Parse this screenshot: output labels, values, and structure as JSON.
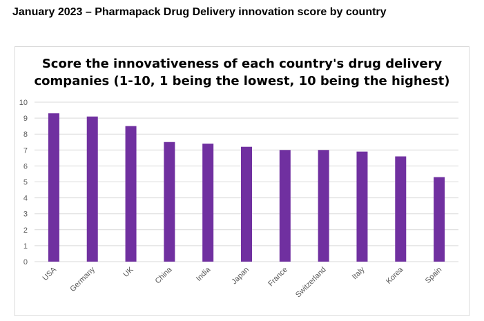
{
  "page": {
    "heading": "January 2023 – Pharmapack Drug Delivery innovation score by country"
  },
  "chart_data": {
    "type": "bar",
    "title_lines": [
      "Score the innovativeness of each country's drug delivery",
      "companies (1-10, 1 being the lowest, 10 being the highest)"
    ],
    "categories": [
      "USA",
      "Germany",
      "UK",
      "China",
      "India",
      "Japan",
      "France",
      "Switzerland",
      "Italy",
      "Korea",
      "Spain"
    ],
    "values": [
      9.3,
      9.1,
      8.5,
      7.5,
      7.4,
      7.2,
      7.0,
      7.0,
      6.9,
      6.6,
      5.3
    ],
    "ylim": [
      0,
      10
    ],
    "yticks": [
      0,
      1,
      2,
      3,
      4,
      5,
      6,
      7,
      8,
      9,
      10
    ],
    "xlabel": "",
    "ylabel": "",
    "grid": true,
    "legend": "none",
    "colors": {
      "bar": "#7030a0",
      "grid": "#d9d9d9",
      "tick_text": "#595959"
    }
  }
}
